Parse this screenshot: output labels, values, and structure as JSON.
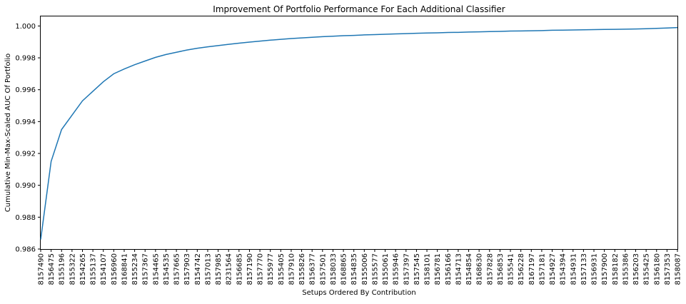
{
  "chart_data": {
    "type": "line",
    "title": "Improvement Of Portfolio Performance For Each Additional Classifier",
    "xlabel": "Setups Ordered By Contribution",
    "ylabel": "Cumulative Min-Max-Scaled AUC Of Portfolio",
    "ylim": [
      0.986,
      1.0006
    ],
    "yticks": [
      0.986,
      0.988,
      0.99,
      0.992,
      0.994,
      0.996,
      0.998,
      1.0
    ],
    "ytick_labels": [
      "0.986",
      "0.988",
      "0.990",
      "0.992",
      "0.994",
      "0.996",
      "0.998",
      "1.000"
    ],
    "grid": false,
    "line_color": "#1f77b4",
    "categories": [
      "8157490",
      "8156475",
      "8155196",
      "8155322",
      "8154265",
      "8155137",
      "8154107",
      "8156960",
      "8168841",
      "8155234",
      "8157367",
      "8154465",
      "8154535",
      "8157665",
      "8157903",
      "8154742",
      "8157013",
      "8157985",
      "8231564",
      "8156685",
      "8157190",
      "8157770",
      "8155977",
      "8155405",
      "8157910",
      "8155826",
      "8156377",
      "8157501",
      "8158033",
      "8168865",
      "8154835",
      "8155006",
      "8155577",
      "8155061",
      "8155946",
      "8157397",
      "8157545",
      "8158101",
      "8156781",
      "8156166",
      "8154713",
      "8154854",
      "8168630",
      "8157828",
      "8156853",
      "8155541",
      "8156228",
      "8167197",
      "8157181",
      "8154927",
      "8154394",
      "8154931",
      "8157133",
      "8156931",
      "8157900",
      "8158182",
      "8155386",
      "8156203",
      "8155425",
      "8156180",
      "8157353",
      "8158087"
    ],
    "values": [
      0.9866,
      0.9915,
      0.9935,
      0.9944,
      0.9953,
      0.9959,
      0.9965,
      0.997,
      0.9973,
      0.99757,
      0.9978,
      0.99803,
      0.99821,
      0.99835,
      0.99849,
      0.9986,
      0.99869,
      0.99877,
      0.99885,
      0.99892,
      0.99899,
      0.99905,
      0.99911,
      0.99916,
      0.99921,
      0.99925,
      0.99929,
      0.99933,
      0.99936,
      0.99939,
      0.99941,
      0.99944,
      0.99946,
      0.99948,
      0.9995,
      0.99952,
      0.99954,
      0.99956,
      0.99957,
      0.99959,
      0.9996,
      0.99962,
      0.99963,
      0.99965,
      0.99966,
      0.99968,
      0.99969,
      0.9997,
      0.99971,
      0.99973,
      0.99974,
      0.99975,
      0.99976,
      0.99977,
      0.99978,
      0.99979,
      0.9998,
      0.99981,
      0.99983,
      0.99985,
      0.99987,
      0.9999
    ]
  }
}
